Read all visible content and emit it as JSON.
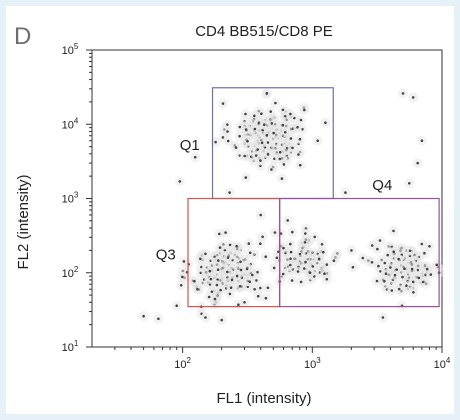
{
  "panel_letter": "D",
  "chart_data": {
    "type": "scatter",
    "title": "CD4 BB515/CD8 PE",
    "xlabel": "FL1 (intensity)",
    "ylabel": "FL2 (intensity)",
    "x_scale": "log",
    "y_scale": "log",
    "xlim": [
      20,
      10000
    ],
    "ylim": [
      10,
      100000
    ],
    "x_ticks": [
      {
        "value": 100,
        "base": "10",
        "exp": "2"
      },
      {
        "value": 1000,
        "base": "10",
        "exp": "3"
      },
      {
        "value": 10000,
        "base": "10",
        "exp": "4"
      }
    ],
    "y_ticks": [
      {
        "value": 10,
        "base": "10",
        "exp": "1"
      },
      {
        "value": 100,
        "base": "10",
        "exp": "2"
      },
      {
        "value": 1000,
        "base": "10",
        "exp": "3"
      },
      {
        "value": 10000,
        "base": "10",
        "exp": "4"
      },
      {
        "value": 100000,
        "base": "10",
        "exp": "5"
      }
    ],
    "grid": false,
    "point_color": "#444444",
    "gates": [
      {
        "name": "Q1",
        "x_range": [
          170,
          1450
        ],
        "y_range": [
          1000,
          31000
        ],
        "color": "#6f6fa8"
      },
      {
        "name": "Q3",
        "x_range": [
          110,
          560
        ],
        "y_range": [
          35,
          1000
        ],
        "color": "#d9534f"
      },
      {
        "name": "Q4",
        "x_range": [
          560,
          9500
        ],
        "y_range": [
          35,
          1000
        ],
        "color": "#9b4f9e"
      }
    ],
    "populations": [
      {
        "name": "Q1",
        "center_log": [
          2.65,
          3.85
        ],
        "spread_log": [
          0.14,
          0.22
        ],
        "count": 190
      },
      {
        "name": "Q3",
        "center_log": [
          2.35,
          2.0
        ],
        "spread_log": [
          0.14,
          0.2
        ],
        "count": 175
      },
      {
        "name": "Q4-left",
        "center_log": [
          2.95,
          2.2
        ],
        "spread_log": [
          0.13,
          0.18
        ],
        "count": 95
      },
      {
        "name": "Q4-right",
        "center_log": [
          3.72,
          2.08
        ],
        "spread_log": [
          0.14,
          0.16
        ],
        "count": 140
      }
    ],
    "outliers": [
      [
        50,
        26
      ],
      [
        65,
        24
      ],
      [
        90,
        36
      ],
      [
        130,
        60
      ],
      [
        140,
        28
      ],
      [
        150,
        25
      ],
      [
        200,
        23
      ],
      [
        95,
        1700
      ],
      [
        125,
        3600
      ],
      [
        150,
        180
      ],
      [
        5000,
        26000
      ],
      [
        6000,
        23000
      ],
      [
        5600,
        1600
      ],
      [
        7000,
        6000
      ],
      [
        3500,
        25
      ],
      [
        2000,
        200
      ],
      [
        1800,
        1200
      ],
      [
        230,
        1200
      ],
      [
        400,
        600
      ],
      [
        6500,
        3000
      ],
      [
        300,
        40
      ],
      [
        1100,
        6000
      ]
    ]
  }
}
